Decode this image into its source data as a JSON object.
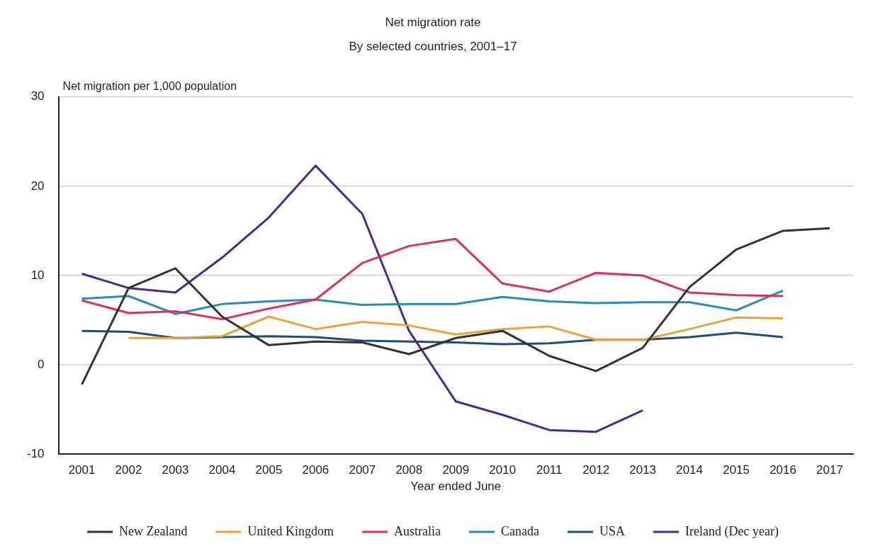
{
  "chart_data": {
    "type": "line",
    "title": "Net migration rate",
    "subtitle": "By selected countries, 2001–17",
    "xlabel": "Year ended June",
    "ylabel": "Net migration per 1,000 population",
    "categories": [
      "2001",
      "2002",
      "2003",
      "2004",
      "2005",
      "2006",
      "2007",
      "2008",
      "2009",
      "2010",
      "2011",
      "2012",
      "2013",
      "2014",
      "2015",
      "2016",
      "2017"
    ],
    "series": [
      {
        "name": "New Zealand",
        "color": "#333333",
        "values": [
          -2.2,
          8.6,
          10.8,
          5.4,
          2.2,
          2.6,
          2.5,
          1.2,
          3.0,
          3.8,
          1.0,
          -0.7,
          1.9,
          8.7,
          12.9,
          15.0,
          15.3
        ]
      },
      {
        "name": "United Kingdom",
        "color": "#e8a33d",
        "values": [
          null,
          3.0,
          3.0,
          3.2,
          5.4,
          4.0,
          4.8,
          4.4,
          3.4,
          4.0,
          4.3,
          2.8,
          2.8,
          4.0,
          5.3,
          5.2,
          null
        ]
      },
      {
        "name": "Australia",
        "color": "#d6335f",
        "values": [
          7.2,
          5.8,
          6.0,
          5.1,
          6.3,
          7.3,
          11.4,
          13.3,
          14.1,
          9.1,
          8.2,
          10.3,
          10.0,
          8.1,
          7.8,
          7.7,
          null
        ]
      },
      {
        "name": "Canada",
        "color": "#2a8ab8",
        "values": [
          7.4,
          7.7,
          5.7,
          6.8,
          7.1,
          7.3,
          6.7,
          6.8,
          6.8,
          7.6,
          7.1,
          6.9,
          7.0,
          7.0,
          6.1,
          8.3,
          null
        ]
      },
      {
        "name": "USA",
        "color": "#1b4f7a",
        "values": [
          3.8,
          3.7,
          3.0,
          3.1,
          3.2,
          3.1,
          2.7,
          2.6,
          2.5,
          2.3,
          2.4,
          2.8,
          2.8,
          3.1,
          3.6,
          3.1,
          null
        ]
      },
      {
        "name": "Ireland (Dec year)",
        "color": "#4b2a8c",
        "values": [
          10.2,
          8.6,
          8.1,
          12.0,
          16.5,
          22.3,
          16.9,
          3.8,
          -4.1,
          -5.6,
          -7.3,
          -7.5,
          -5.1,
          null,
          null,
          null,
          null
        ]
      }
    ],
    "ylim": [
      -10,
      30
    ],
    "yticks": [
      -10,
      0,
      10,
      20,
      30
    ],
    "grid": "y",
    "legend": "bottom",
    "marker": "none",
    "line_style": "solid"
  }
}
